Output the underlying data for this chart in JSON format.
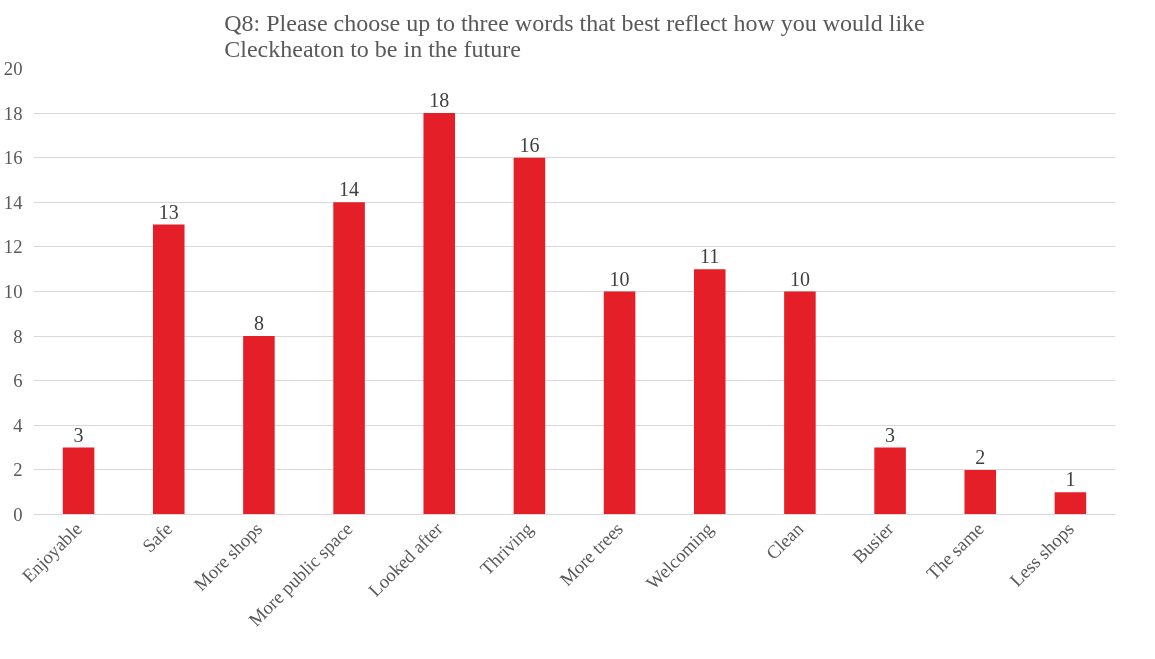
{
  "chart_data": {
    "type": "bar",
    "title": "Q8: Please choose up to three words that best reflect how you would like\nCleckheaton to be in the future",
    "categories": [
      "Enjoyable",
      "Safe",
      "More shops",
      "More public space",
      "Looked after",
      "Thriving",
      "More trees",
      "Welcoming",
      "Clean",
      "Busier",
      "The same",
      "Less shops"
    ],
    "values": [
      3,
      13,
      8,
      14,
      18,
      16,
      10,
      11,
      10,
      3,
      2,
      1
    ],
    "color": "#e41f28",
    "ylim": [
      0,
      20
    ],
    "yticks": [
      0,
      2,
      4,
      6,
      8,
      10,
      12,
      14,
      16,
      18,
      20
    ],
    "grid": "y",
    "data_labels": true
  }
}
